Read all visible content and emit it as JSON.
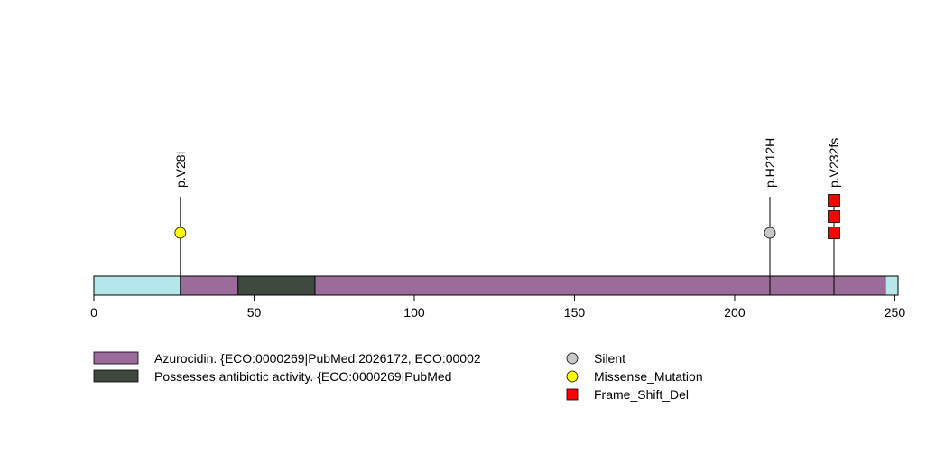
{
  "chart_data": {
    "type": "lollipop",
    "title": "",
    "xlabel": "",
    "ylabel": "",
    "protein_length": 251,
    "xlim": [
      0,
      251
    ],
    "ticks": [
      0,
      50,
      100,
      150,
      200,
      250
    ],
    "tick_labels": [
      "0",
      "50",
      "100",
      "150",
      "200",
      "250"
    ],
    "colors": {
      "protein_background": "#b4e6ea",
      "grid": "none"
    },
    "domains": [
      {
        "name": "Azurocidin. {ECO:0000269|PubMed:2026172, ECO:00002",
        "start": 27,
        "end": 247,
        "color": "#9b6b9a"
      },
      {
        "name": "Possesses antibiotic activity. {ECO:0000269|PubMed",
        "start": 45,
        "end": 69,
        "color": "#3d4a3d"
      }
    ],
    "mutations": [
      {
        "label": "p.V28I",
        "position": 27,
        "count": 1,
        "type": "Missense_Mutation"
      },
      {
        "label": "p.H212H",
        "position": 211,
        "count": 1,
        "type": "Silent"
      },
      {
        "label": "p.V232fs",
        "position": 231,
        "count": 3,
        "type": "Frame_Shift_Del"
      }
    ],
    "mutation_types": [
      {
        "name": "Silent",
        "color": "#c8c8c8",
        "shape": "circle"
      },
      {
        "name": "Missense_Mutation",
        "color": "#ffff00",
        "shape": "circle"
      },
      {
        "name": "Frame_Shift_Del",
        "color": "#ff0000",
        "shape": "square"
      }
    ],
    "legend_position": "bottom"
  }
}
